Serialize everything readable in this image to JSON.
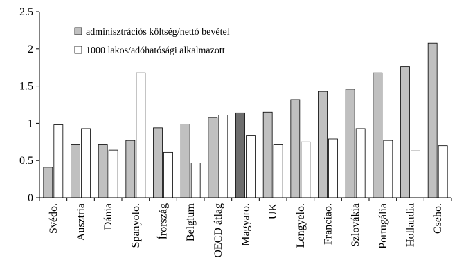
{
  "chart_data": {
    "type": "bar",
    "categories": [
      "Svédo.",
      "Ausztria",
      "Dánia",
      "Spanyolo.",
      "Írország",
      "Belgium",
      "OECD átlag",
      "Magyaro.",
      "UK",
      "Lengyelo.",
      "Franciao.",
      "Szlovákia",
      "Portugália",
      "Hollandia",
      "Cseho."
    ],
    "series": [
      {
        "name": "adminisztrációs költség/nettó bevétel",
        "color": "#c0c0c0",
        "colors": [
          "#c0c0c0",
          "#c0c0c0",
          "#c0c0c0",
          "#c0c0c0",
          "#c0c0c0",
          "#c0c0c0",
          "#c0c0c0",
          "#6e6e6e",
          "#c0c0c0",
          "#c0c0c0",
          "#c0c0c0",
          "#c0c0c0",
          "#c0c0c0",
          "#c0c0c0",
          "#c0c0c0"
        ],
        "values": [
          0.41,
          0.72,
          0.72,
          0.77,
          0.94,
          0.99,
          1.08,
          1.14,
          1.15,
          1.32,
          1.43,
          1.46,
          1.68,
          1.76,
          2.08
        ]
      },
      {
        "name": "1000 lakos/adóhatósági alkalmazott",
        "color": "#ffffff",
        "values": [
          0.98,
          0.93,
          0.64,
          1.68,
          0.61,
          0.47,
          1.11,
          0.84,
          0.72,
          0.75,
          0.79,
          0.93,
          0.77,
          0.63,
          0.7
        ]
      }
    ],
    "ylim": [
      0,
      2.5
    ],
    "yticks": [
      0,
      0.5,
      1,
      1.5,
      2,
      2.5
    ],
    "grid": false
  }
}
